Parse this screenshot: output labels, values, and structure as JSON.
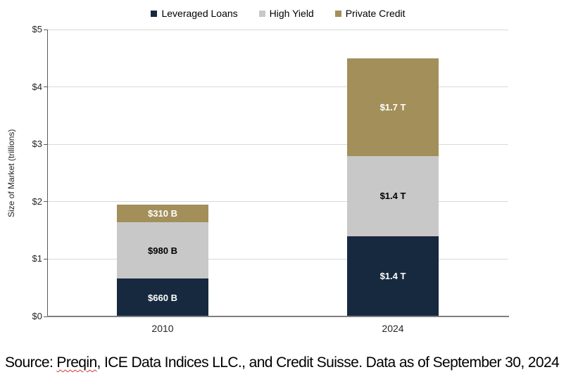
{
  "chart_data": {
    "type": "bar",
    "stacked": true,
    "categories": [
      "2010",
      "2024"
    ],
    "series": [
      {
        "name": "Leveraged Loans",
        "color": "#16293e",
        "label_color": "#ffffff",
        "values": [
          0.66,
          1.4
        ],
        "data_labels": [
          "$660 B",
          "$1.4 T"
        ]
      },
      {
        "name": "High Yield",
        "color": "#c8c8c8",
        "label_color": "#000000",
        "values": [
          0.98,
          1.4
        ],
        "data_labels": [
          "$980 B",
          "$1.4 T"
        ]
      },
      {
        "name": "Private Credit",
        "color": "#a28f5a",
        "label_color": "#ffffff",
        "values": [
          0.31,
          1.7
        ],
        "data_labels": [
          "$310 B",
          "$1.7 T"
        ]
      }
    ],
    "title": "",
    "xlabel": "",
    "ylabel": "Size of Market (trillions)",
    "ylim": [
      0,
      5
    ],
    "yticks": [
      "$0",
      "$1",
      "$2",
      "$3",
      "$4",
      "$5"
    ],
    "grid": true,
    "legend_position": "top"
  },
  "footer": {
    "prefix": "Source: ",
    "spellchecked_word": "Preqin",
    "rest": ", ICE Data Indices LLC., and Credit Suisse. Data as of September 30, 2024"
  }
}
